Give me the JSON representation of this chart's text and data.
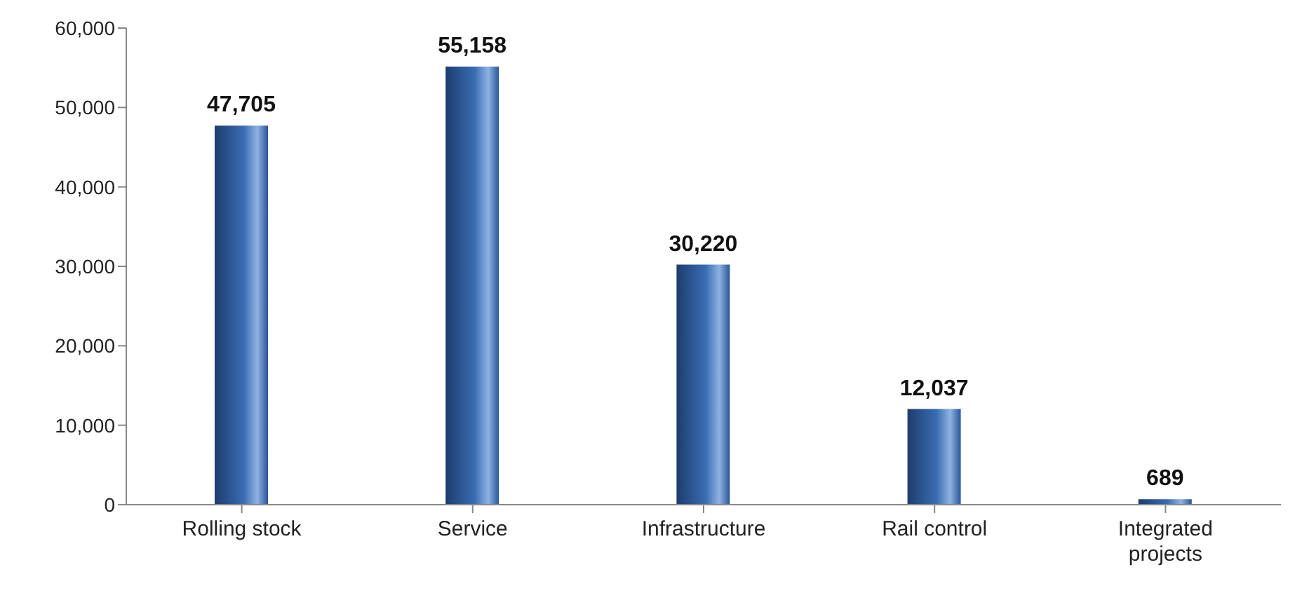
{
  "chart_data": {
    "type": "bar",
    "categories": [
      "Rolling stock",
      "Service",
      "Infrastructure",
      "Rail control",
      "Integrated projects"
    ],
    "values": [
      47705,
      55158,
      30220,
      12037,
      689
    ],
    "color": "#3a6db3",
    "ylim": [
      0,
      60000
    ],
    "yticks": [
      {
        "value": 0,
        "label": "0"
      },
      {
        "value": 10000,
        "label": "10,000"
      },
      {
        "value": 20000,
        "label": "20,000"
      },
      {
        "value": 30000,
        "label": "30,000"
      },
      {
        "value": 40000,
        "label": "40,000"
      },
      {
        "value": 50000,
        "label": "50,000"
      },
      {
        "value": 60000,
        "label": "60,000"
      }
    ],
    "value_labels": [
      "47,705",
      "55,158",
      "30,220",
      "12,037",
      "689"
    ],
    "grid": false,
    "legend": false
  }
}
